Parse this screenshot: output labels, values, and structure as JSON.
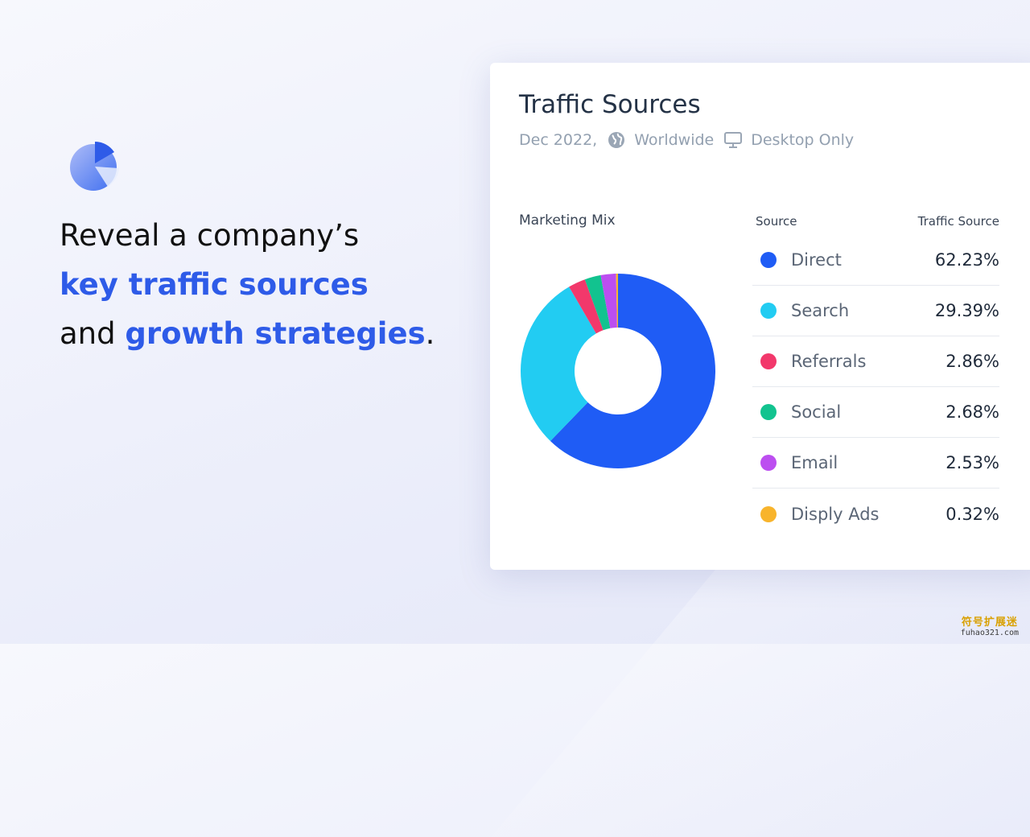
{
  "headline": {
    "line1": "Reveal a company’s",
    "line2_accent": "key traffic sources",
    "line3_prefix": "and ",
    "line3_accent": "growth strategies",
    "line3_suffix": "."
  },
  "card": {
    "title": "Traffic Sources",
    "date": "Dec 2022,",
    "region": "Worldwide",
    "device": "Desktop Only",
    "region_icon": "globe-icon",
    "device_icon": "monitor-icon"
  },
  "chart_data": {
    "type": "pie",
    "title": "Marketing Mix",
    "columns": [
      "Source",
      "Traffic Source"
    ],
    "donut": true,
    "series": [
      {
        "name": "Direct",
        "value": 62.23,
        "label": "62.23%",
        "color": "#1f5cf5"
      },
      {
        "name": "Search",
        "value": 29.39,
        "label": "29.39%",
        "color": "#22ccf2"
      },
      {
        "name": "Referrals",
        "value": 2.86,
        "label": "2.86%",
        "color": "#f2386b"
      },
      {
        "name": "Social",
        "value": 2.68,
        "label": "2.68%",
        "color": "#12c38f"
      },
      {
        "name": "Email",
        "value": 2.53,
        "label": "2.53%",
        "color": "#bc4ef0"
      },
      {
        "name": "Disply Ads",
        "value": 0.32,
        "label": "0.32%",
        "color": "#f8b42c"
      }
    ]
  },
  "watermark": {
    "text_cn": "符号扩展迷",
    "url": "fuhao321.com"
  },
  "colors": {
    "accent": "#2e5be8",
    "background": "#eef0fb",
    "card": "#ffffff"
  }
}
